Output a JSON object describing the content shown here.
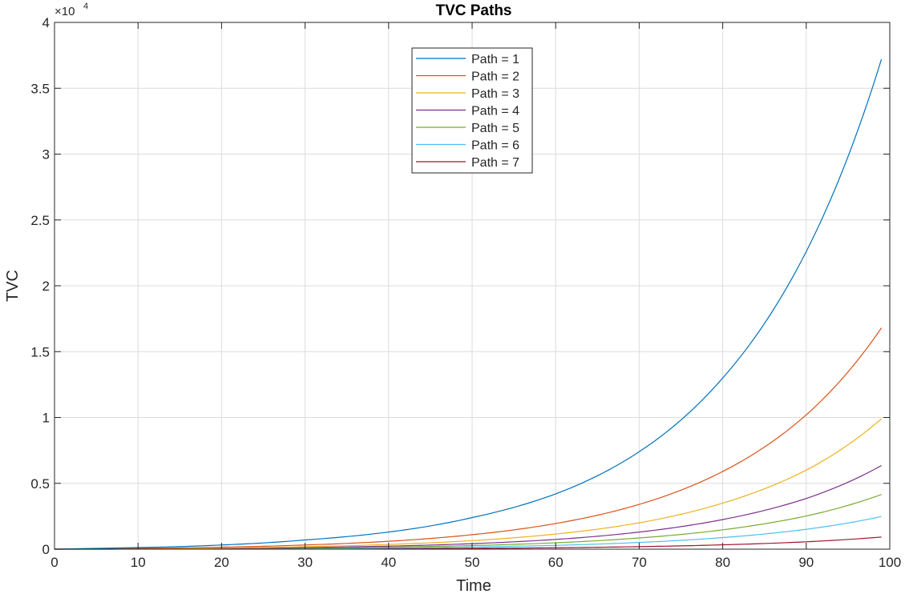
{
  "chart_data": {
    "type": "line",
    "title": "TVC Paths",
    "xlabel": "Time",
    "ylabel": "TVC",
    "xlim": [
      0,
      100
    ],
    "ylim": [
      0,
      40000
    ],
    "xticks": [
      0,
      10,
      20,
      30,
      40,
      50,
      60,
      70,
      80,
      90,
      100
    ],
    "yticks": [
      0,
      5000,
      10000,
      15000,
      20000,
      25000,
      30000,
      35000,
      40000
    ],
    "ytick_labels": [
      "0",
      "0.5",
      "1",
      "1.5",
      "2",
      "2.5",
      "3",
      "3.5",
      "4"
    ],
    "y_exponent": {
      "base": "×10",
      "power": "4"
    },
    "grid": true,
    "legend_position": "top-center",
    "x": [
      0,
      10,
      20,
      30,
      40,
      50,
      60,
      70,
      80,
      90,
      99
    ],
    "series": [
      {
        "name": "Path = 1",
        "color": "#0072BD",
        "values": [
          0,
          120,
          320,
          700,
          1300,
          2400,
          4200,
          7400,
          13000,
          22600,
          37200
        ]
      },
      {
        "name": "Path = 2",
        "color": "#D95319",
        "values": [
          0,
          55,
          150,
          320,
          600,
          1100,
          1950,
          3400,
          5900,
          10200,
          16800
        ]
      },
      {
        "name": "Path = 3",
        "color": "#EDB120",
        "values": [
          0,
          30,
          85,
          190,
          360,
          650,
          1150,
          2000,
          3500,
          6000,
          9900
        ]
      },
      {
        "name": "Path = 4",
        "color": "#7E2F8E",
        "values": [
          0,
          20,
          55,
          125,
          230,
          420,
          740,
          1300,
          2250,
          3850,
          6350
        ]
      },
      {
        "name": "Path = 5",
        "color": "#77AC30",
        "values": [
          0,
          13,
          36,
          80,
          150,
          275,
          485,
          850,
          1470,
          2520,
          4150
        ]
      },
      {
        "name": "Path = 6",
        "color": "#4DBEEE",
        "values": [
          0,
          8,
          22,
          48,
          90,
          165,
          290,
          510,
          880,
          1510,
          2480
        ]
      },
      {
        "name": "Path = 7",
        "color": "#A2142F",
        "values": [
          0,
          3,
          8,
          18,
          34,
          62,
          110,
          190,
          330,
          560,
          920
        ]
      }
    ]
  }
}
